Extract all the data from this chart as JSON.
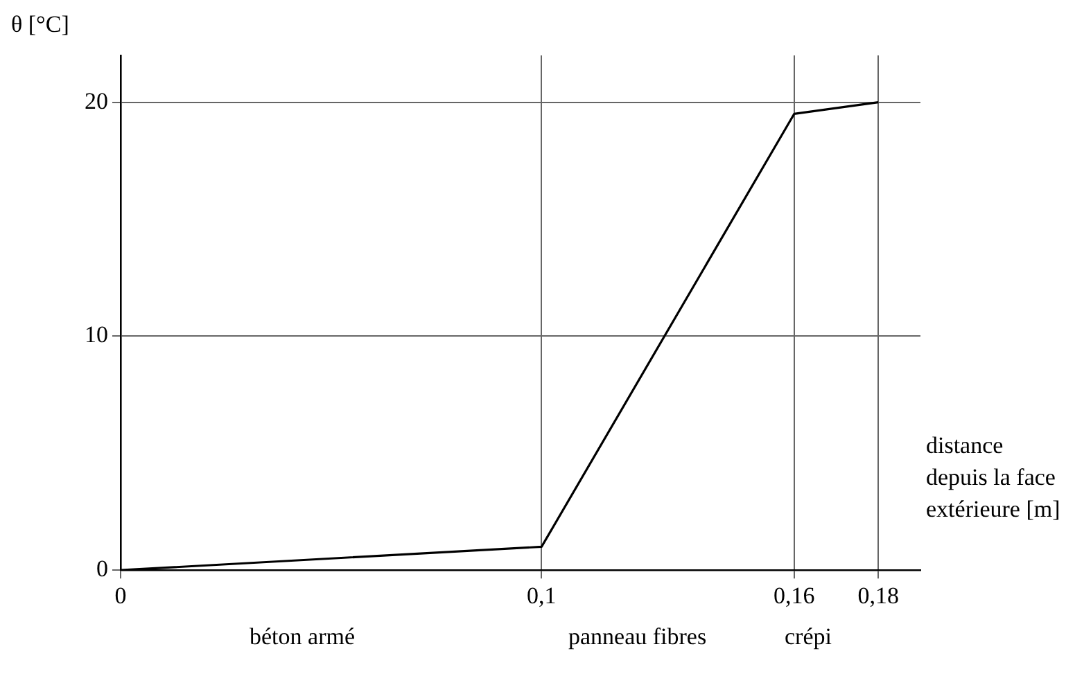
{
  "chart_data": {
    "type": "line",
    "ylabel": "θ [°C]",
    "xlabel": "distance depuis la face extérieure [m]",
    "annotations": [
      "béton armé",
      "panneau fibres",
      "crépi"
    ],
    "x": [
      0,
      0.1,
      0.16,
      0.18
    ],
    "values": [
      0,
      1,
      19.5,
      20
    ],
    "color": "#000000",
    "xlim": [
      0,
      0.19
    ],
    "xticks": [
      0,
      {
        "value": 0.1,
        "label": "0,1"
      },
      {
        "value": 0.16,
        "label": "0,16"
      },
      {
        "value": 0.18,
        "label": "0,18"
      }
    ],
    "ylim": [
      0,
      22
    ],
    "yticks": [
      0,
      10,
      20
    ],
    "grid": true,
    "marker": "none",
    "line_style": "solid",
    "legend": false
  }
}
